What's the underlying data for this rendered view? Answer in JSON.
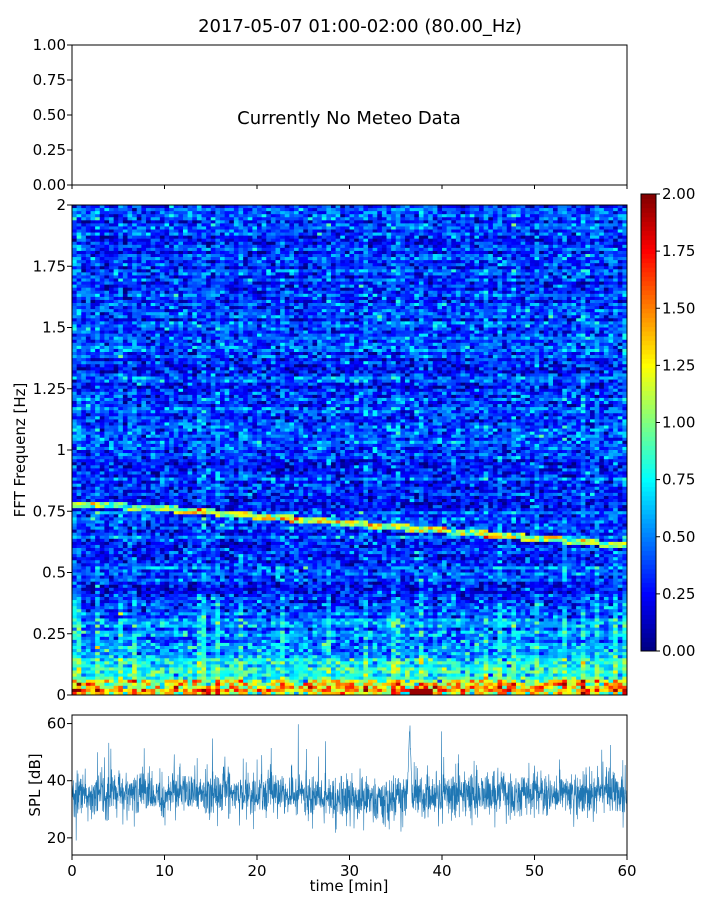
{
  "figure": {
    "title": "2017-05-07 01:00-02:00 (80.00_Hz)"
  },
  "chart_data": [
    {
      "type": "line",
      "panel": "meteo",
      "annotation": "Currently No Meteo Data",
      "ylim": [
        0,
        1
      ],
      "yticks": [
        "0.00",
        "0.25",
        "0.50",
        "0.75",
        "1.00"
      ],
      "xlim": [
        0,
        60
      ],
      "series": []
    },
    {
      "type": "heatmap",
      "panel": "spectrogram",
      "ylabel": "FFT Frequenz [Hz]",
      "xlim": [
        0,
        60
      ],
      "ylim": [
        0,
        2
      ],
      "yticks": [
        "0",
        "0.25",
        "0.5",
        "0.75",
        "1",
        "1.25",
        "1.5",
        "1.75",
        "2"
      ],
      "colorbar": {
        "min": 0,
        "max": 2,
        "ticks": [
          "0.00",
          "0.25",
          "0.50",
          "0.75",
          "1.00",
          "1.25",
          "1.50",
          "1.75",
          "2.00"
        ],
        "colormap": "jet"
      },
      "dominant_line": {
        "x": [
          0,
          10,
          20,
          30,
          40,
          50,
          60
        ],
        "y": [
          0.78,
          0.76,
          0.73,
          0.7,
          0.67,
          0.64,
          0.61
        ]
      },
      "typical_level": 0.35
    },
    {
      "type": "line",
      "panel": "spl",
      "ylabel": "SPL [dB]",
      "xlabel": "time [min]",
      "xlim": [
        0,
        60
      ],
      "ylim": [
        14,
        63
      ],
      "yticks": [
        20,
        40,
        60
      ],
      "xticks": [
        0,
        10,
        20,
        30,
        40,
        50,
        60
      ],
      "series_color": "#1f77b4",
      "mean_level_db": 35,
      "peak": {
        "x": 36.5,
        "y": 60
      }
    }
  ]
}
